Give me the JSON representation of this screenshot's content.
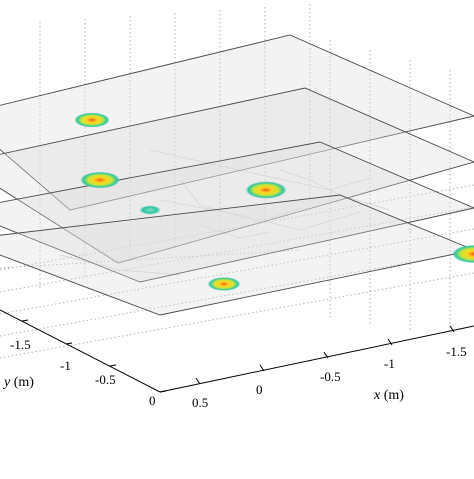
{
  "chart_data": {
    "type": "scatter",
    "title": "",
    "xlabel": "x",
    "xunit": "(m)",
    "ylabel": "y",
    "yunit": "(m)",
    "x_ticks": [
      "0.5",
      "0",
      "-0.5",
      "-1",
      "-1.5"
    ],
    "y_ticks": [
      "0",
      "-0.5",
      "-1",
      "-1.5"
    ],
    "grid": true,
    "grid_style": "dotted",
    "layers": 4,
    "colors": {
      "box": "#7a7a7a",
      "grid": "#b5b5b5",
      "plane_fill": "#dcdcdc",
      "blob_outer": "#2ec4a4",
      "blob_mid": "#c8e63a",
      "blob_inner": "#ffd21a",
      "blob_hot": "#f05a1e"
    },
    "hotspots": [
      {
        "layer": 1,
        "intensity": 0.7
      },
      {
        "layer": 2,
        "intensity": 0.85
      },
      {
        "layer": 2,
        "intensity": 0.9
      },
      {
        "layer": 3,
        "intensity": 0.2
      },
      {
        "layer": 4,
        "intensity": 0.6
      },
      {
        "layer": 4,
        "intensity": 1.0
      }
    ]
  }
}
